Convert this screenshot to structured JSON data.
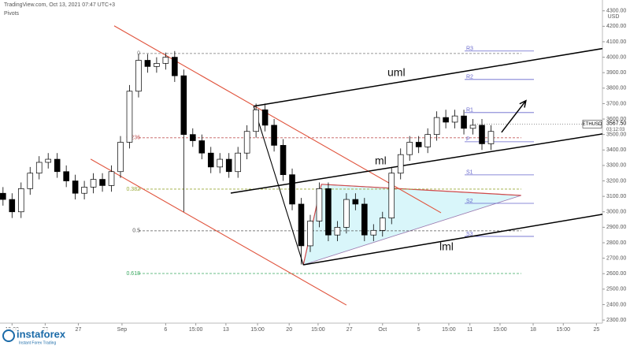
{
  "header": {
    "source": "TradingView.com, Oct 13, 2021 07:47 UTC+3",
    "indicator": "Pivots"
  },
  "watermark": {
    "brand": "instaforex",
    "tagline": "Instant Forex Trading"
  },
  "chart_data": {
    "type": "candlestick",
    "symbol": "ETHUSD",
    "currency": "USD",
    "last_price": {
      "value": 3567.5,
      "label": "3567.50"
    },
    "countdown": "03:12:03",
    "xlim": [
      0,
      200
    ],
    "ylim": [
      2280,
      4370
    ],
    "grid": false,
    "xticks": [
      {
        "value": 4,
        "label": "15:00"
      },
      {
        "value": 15,
        "label": "23"
      },
      {
        "value": 26,
        "label": "27"
      },
      {
        "value": 40.5,
        "label": "Sep"
      },
      {
        "value": 55,
        "label": "6"
      },
      {
        "value": 65,
        "label": "15:00"
      },
      {
        "value": 75,
        "label": "13"
      },
      {
        "value": 85.5,
        "label": "15:00"
      },
      {
        "value": 96,
        "label": "20"
      },
      {
        "value": 105.6,
        "label": "15:00"
      },
      {
        "value": 116,
        "label": "27"
      },
      {
        "value": 127,
        "label": "Oct"
      },
      {
        "value": 139,
        "label": "5"
      },
      {
        "value": 149,
        "label": "15:00"
      },
      {
        "value": 156,
        "label": "11"
      },
      {
        "value": 166,
        "label": "15:00"
      },
      {
        "value": 177,
        "label": "18"
      },
      {
        "value": 187,
        "label": "15:00"
      },
      {
        "value": 198,
        "label": "25"
      }
    ],
    "yticks": [
      {
        "value": 2300,
        "label": "2300.00"
      },
      {
        "value": 2400,
        "label": "2400.00"
      },
      {
        "value": 2500,
        "label": "2500.00"
      },
      {
        "value": 2600,
        "label": "2600.00"
      },
      {
        "value": 2700,
        "label": "2700.00"
      },
      {
        "value": 2800,
        "label": "2800.00"
      },
      {
        "value": 2900,
        "label": "2900.00"
      },
      {
        "value": 3000,
        "label": "3000.00"
      },
      {
        "value": 3100,
        "label": "3100.00"
      },
      {
        "value": 3200,
        "label": "3200.00"
      },
      {
        "value": 3300,
        "label": "3300.00"
      },
      {
        "value": 3400,
        "label": "3400.00"
      },
      {
        "value": 3500,
        "label": "3500.00"
      },
      {
        "value": 3600,
        "label": "3600.00"
      },
      {
        "value": 3700,
        "label": "3700.00"
      },
      {
        "value": 3800,
        "label": "3800.00"
      },
      {
        "value": 3900,
        "label": "3900.00"
      },
      {
        "value": 4000,
        "label": "4000.00"
      },
      {
        "value": 4100,
        "label": "4100.00"
      },
      {
        "value": 4200,
        "label": "4200.00"
      },
      {
        "value": 4300,
        "label": "4300.00"
      }
    ],
    "candles": {
      "x": [
        1,
        4,
        7,
        10,
        13,
        16,
        19,
        22,
        25,
        28,
        31,
        34,
        37,
        40,
        43,
        46,
        49,
        52,
        55,
        58,
        61,
        64,
        67,
        70,
        73,
        76,
        79,
        82,
        85,
        88,
        91,
        94,
        97,
        100,
        103,
        106,
        109,
        112,
        115,
        118,
        121,
        124,
        127,
        130,
        133,
        136,
        139,
        142,
        145,
        148,
        151,
        154,
        157,
        160,
        163
      ],
      "open": [
        3120,
        3080,
        3000,
        3150,
        3250,
        3320,
        3340,
        3260,
        3200,
        3120,
        3160,
        3210,
        3170,
        3260,
        3450,
        3780,
        3980,
        3940,
        3960,
        4000,
        3880,
        3500,
        3460,
        3380,
        3290,
        3340,
        3260,
        3380,
        3520,
        3660,
        3560,
        3430,
        3240,
        3050,
        2780,
        2940,
        3150,
        2850,
        2900,
        3080,
        3050,
        2850,
        2880,
        2960,
        3250,
        3370,
        3450,
        3420,
        3500,
        3610,
        3580,
        3620,
        3540,
        3560,
        3440
      ],
      "close": [
        3080,
        3000,
        3150,
        3250,
        3320,
        3340,
        3260,
        3200,
        3120,
        3160,
        3210,
        3170,
        3260,
        3450,
        3780,
        3980,
        3940,
        3960,
        4000,
        3880,
        3500,
        3460,
        3380,
        3290,
        3340,
        3260,
        3380,
        3520,
        3660,
        3560,
        3430,
        3240,
        3050,
        2780,
        2940,
        3150,
        2850,
        2900,
        3080,
        3050,
        2850,
        2880,
        2960,
        3250,
        3370,
        3450,
        3420,
        3500,
        3610,
        3580,
        3620,
        3540,
        3560,
        3440,
        3520
      ],
      "high": [
        3160,
        3120,
        3190,
        3290,
        3360,
        3380,
        3380,
        3300,
        3240,
        3200,
        3250,
        3250,
        3300,
        3490,
        3820,
        4020,
        4020,
        4000,
        4030,
        4040,
        3920,
        3540,
        3500,
        3420,
        3380,
        3380,
        3420,
        3560,
        3700,
        3700,
        3600,
        3470,
        3280,
        3090,
        2980,
        3190,
        3190,
        2940,
        3120,
        3120,
        3090,
        2920,
        3000,
        3290,
        3410,
        3490,
        3490,
        3540,
        3650,
        3660,
        3660,
        3660,
        3600,
        3600,
        3560
      ],
      "low": [
        3040,
        2960,
        2960,
        3110,
        3210,
        3280,
        3220,
        3160,
        3080,
        3080,
        3120,
        3130,
        3130,
        3220,
        3410,
        3740,
        3900,
        3900,
        3920,
        3840,
        3000,
        3420,
        3340,
        3250,
        3250,
        3220,
        3220,
        3340,
        3480,
        3520,
        3390,
        3200,
        3010,
        2660,
        2740,
        2900,
        2810,
        2810,
        2860,
        3010,
        2810,
        2810,
        2840,
        2920,
        3210,
        3330,
        3380,
        3380,
        3460,
        3540,
        3540,
        3500,
        3500,
        3400,
        3400
      ]
    },
    "fib_levels": [
      {
        "ratio": 0,
        "price": 4024,
        "color": "#777777"
      },
      {
        "ratio": 0.236,
        "price": 3479,
        "color": "#c45a5a"
      },
      {
        "ratio": 0.382,
        "price": 3147,
        "color": "#9aaa3a"
      },
      {
        "ratio": 0.5,
        "price": 2877,
        "color": "#555555"
      },
      {
        "ratio": 0.618,
        "price": 2601,
        "color": "#3aa860"
      }
    ],
    "pivots": [
      {
        "name": "R3",
        "price": 4040
      },
      {
        "name": "R2",
        "price": 3856
      },
      {
        "name": "R1",
        "price": 3642
      },
      {
        "name": "P",
        "price": 3453
      },
      {
        "name": "S1",
        "price": 3239
      },
      {
        "name": "S2",
        "price": 3055
      },
      {
        "name": "S3",
        "price": 2841
      }
    ],
    "pivot_color": "#6666cc",
    "lines": [
      {
        "name": "uml",
        "color": "#000000",
        "x": [
          84.2,
          200
        ],
        "y": [
          3683,
          4056
        ]
      },
      {
        "name": "ml",
        "color": "#000000",
        "x": [
          76.6,
          200
        ],
        "y": [
          3121,
          3504
        ]
      },
      {
        "name": "lml",
        "color": "#000000",
        "x": [
          100.7,
          200
        ],
        "y": [
          2657,
          2984
        ]
      }
    ],
    "drawings": [
      {
        "color": "#e0533c",
        "x": [
          37.9,
          146.4
        ],
        "y": [
          4203,
          2994
        ]
      },
      {
        "color": "#e0533c",
        "x": [
          30.1,
          115
        ],
        "y": [
          3341,
          2397
        ]
      },
      {
        "color": "#000000",
        "x": [
          84.2,
          100.7
        ],
        "y": [
          3683,
          2657
        ]
      }
    ],
    "triangle": {
      "color": "#d9f6fa",
      "edge": "#d04a4a",
      "x": [
        100.7,
        106.7,
        173
      ],
      "y": [
        2657,
        3178,
        3106
      ]
    },
    "arrow": {
      "color": "#000000",
      "x": [
        166.5,
        174.6
      ],
      "y": [
        3514,
        3719
      ]
    }
  }
}
